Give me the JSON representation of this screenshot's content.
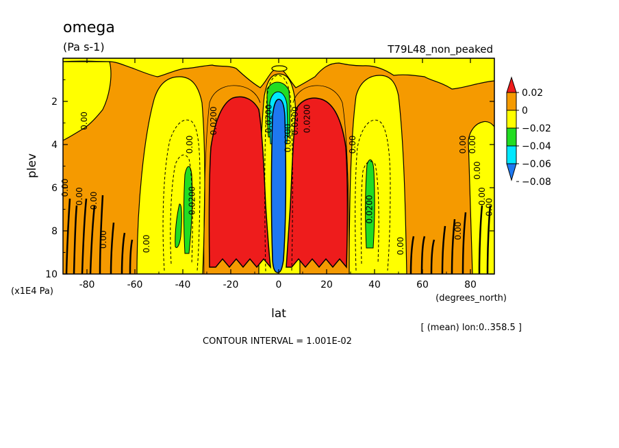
{
  "chart_data": {
    "type": "heatmap",
    "title": "omega",
    "units": "(Pa s-1)",
    "dataset": "T79L48_non_peaked",
    "xlabel": "lat",
    "xunits": "(degrees_north)",
    "ylabel": "plev",
    "yunits": "(x1E4 Pa)",
    "xlim": [
      -90,
      90
    ],
    "ylim": [
      10,
      0
    ],
    "x_ticks": [
      -80,
      -60,
      -40,
      -20,
      0,
      20,
      40,
      60,
      80
    ],
    "y_ticks": [
      2,
      4,
      6,
      8,
      10
    ],
    "grid": false,
    "legend": "right",
    "contour_interval": "CONTOUR INTERVAL = 1.001E-02",
    "averaging_note": "[ (mean) lon:0..358.5 ]",
    "colorbar": {
      "labels": [
        "0.02",
        "0",
        "−0.02",
        "−0.04",
        "−0.06",
        "−0.08"
      ],
      "bins": [
        {
          "range": "> 0.02",
          "color": "#ee1c1c"
        },
        {
          "range": "0 .. 0.02",
          "color": "#f59a00"
        },
        {
          "range": "-0.02 .. 0",
          "color": "#ffff00"
        },
        {
          "range": "-0.04 .. -0.02",
          "color": "#22dd22"
        },
        {
          "range": "-0.06 .. -0.04",
          "color": "#00e8ff"
        },
        {
          "range": "< -0.06",
          "color": "#1e78f0"
        }
      ]
    },
    "contour_labels": [
      {
        "text": "0.00",
        "lat": -88,
        "plev": 6.0
      },
      {
        "text": "0.00",
        "lat": -82,
        "plev": 6.4
      },
      {
        "text": "0.00",
        "lat": -76,
        "plev": 6.6
      },
      {
        "text": "0.00",
        "lat": -72,
        "plev": 8.4
      },
      {
        "text": "0.00",
        "lat": -80,
        "plev": 2.9
      },
      {
        "text": "0.00",
        "lat": -54,
        "plev": 8.6
      },
      {
        "text": "0.00",
        "lat": -36,
        "plev": 4.0
      },
      {
        "text": "0.0200",
        "lat": -35,
        "plev": 6.6
      },
      {
        "text": "0.0200",
        "lat": -26,
        "plev": 2.9
      },
      {
        "text": "0.0200",
        "lat": -3,
        "plev": 2.8
      },
      {
        "text": "0.0200",
        "lat": 5,
        "plev": 3.7
      },
      {
        "text": "0.0200",
        "lat": 8,
        "plev": 2.9
      },
      {
        "text": "0.0200",
        "lat": 13,
        "plev": 2.8
      },
      {
        "text": "0.00",
        "lat": 32,
        "plev": 4.0
      },
      {
        "text": "0.0200",
        "lat": 39,
        "plev": 7.0
      },
      {
        "text": "0.00",
        "lat": 52,
        "plev": 8.7
      },
      {
        "text": "0.00",
        "lat": 76,
        "plev": 8.0
      },
      {
        "text": "0.00",
        "lat": 78,
        "plev": 4.0
      },
      {
        "text": "0.00",
        "lat": 82,
        "plev": 4.0
      },
      {
        "text": "0.00",
        "lat": 84,
        "plev": 5.2
      },
      {
        "text": "0.00",
        "lat": 86,
        "plev": 6.4
      },
      {
        "text": "0.00",
        "lat": 89,
        "plev": 6.9
      }
    ]
  }
}
